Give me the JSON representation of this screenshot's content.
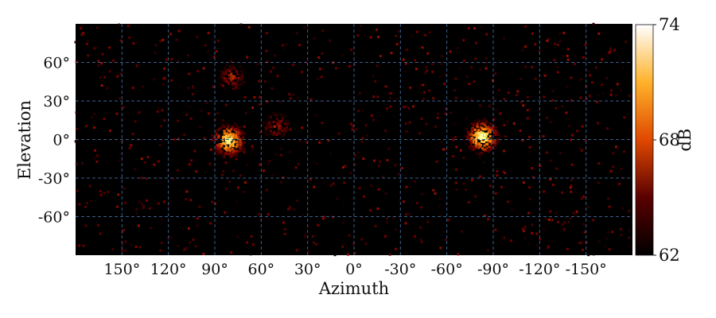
{
  "chart_data": {
    "type": "heatmap",
    "title": "",
    "xlabel": "Azimuth",
    "ylabel": "Elevation",
    "xlim": [
      180,
      -180
    ],
    "ylim": [
      -90,
      90
    ],
    "x_ticks": [
      150,
      120,
      90,
      60,
      30,
      0,
      -30,
      -60,
      -90,
      -120,
      -150
    ],
    "x_tick_labels": [
      "150°",
      "120°",
      "90°",
      "60°",
      "30°",
      "0°",
      "-30°",
      "-60°",
      "-90°",
      "-120°",
      "-150°"
    ],
    "y_ticks": [
      60,
      30,
      0,
      -30,
      -60
    ],
    "y_tick_labels": [
      "60°",
      "30°",
      "0°",
      "-30°",
      "-60°"
    ],
    "grid": true,
    "grid_style": "dashed",
    "grid_color": "#3b5f8a",
    "background_color": "#000000",
    "colormap": "afmhot",
    "colorbar": {
      "label": "dB",
      "min": 62,
      "max": 74,
      "ticks": [
        74,
        68,
        62
      ],
      "tick_labels": [
        "74",
        "68",
        "62"
      ],
      "placement": "right"
    },
    "hotspots": [
      {
        "azimuth": -83,
        "elevation": 2,
        "value": 73.5
      },
      {
        "azimuth": 81,
        "elevation": -1,
        "value": 73.0
      },
      {
        "azimuth": 79,
        "elevation": 48,
        "value": 67.5
      },
      {
        "azimuth": 50,
        "elevation": 10,
        "value": 67.0
      }
    ]
  }
}
